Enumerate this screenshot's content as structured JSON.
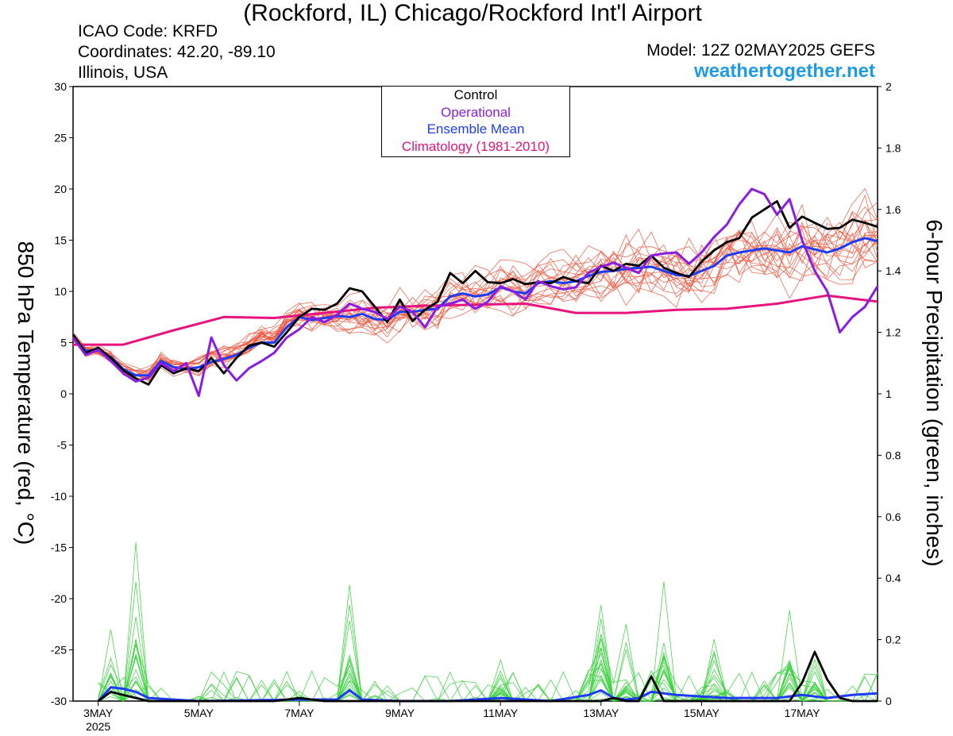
{
  "header": {
    "title": "(Rockford, IL) Chicago/Rockford Int'l Airport",
    "icao": "ICAO Code: KRFD",
    "coordinates": "Coordinates: 42.20, -89.10",
    "region": "Illinois, USA",
    "model": "Model: 12Z 02MAY2025 GEFS",
    "site": "weathertogether.net"
  },
  "legend": {
    "items": [
      {
        "label": "Control",
        "color": "#000000"
      },
      {
        "label": "Operational",
        "color": "#8a1de0"
      },
      {
        "label": "Ensemble Mean",
        "color": "#1f3cf5"
      },
      {
        "label": "Climatology (1981-2010)",
        "color": "#e8147d"
      }
    ]
  },
  "chart_data": {
    "type": "line",
    "ylabel_left": "850 hPa Temperature (red, °C)",
    "ylabel_right": "6-hour Precipitation (green, inches)",
    "ylim_left": [
      -30,
      30
    ],
    "ylim_right": [
      0,
      2
    ],
    "yticks_left": [
      -30,
      -25,
      -20,
      -15,
      -10,
      -5,
      0,
      5,
      10,
      15,
      20,
      25,
      30
    ],
    "yticks_right": [
      0,
      0.2,
      0.4,
      0.6,
      0.8,
      1,
      1.2,
      1.4,
      1.6,
      1.8,
      2
    ],
    "xlim_days": [
      2.5,
      18.5
    ],
    "xticks": [
      {
        "day": 3,
        "label": "3MAY",
        "sub": "2025"
      },
      {
        "day": 5,
        "label": "5MAY"
      },
      {
        "day": 7,
        "label": "7MAY"
      },
      {
        "day": 9,
        "label": "9MAY"
      },
      {
        "day": 11,
        "label": "11MAY"
      },
      {
        "day": 13,
        "label": "13MAY"
      },
      {
        "day": 15,
        "label": "15MAY"
      },
      {
        "day": 17,
        "label": "17MAY"
      }
    ],
    "colors": {
      "members_temp": "#f0553c",
      "members_precip": "#39d23c",
      "control": "#000000",
      "operational": "#8a1de0",
      "mean": "#1f3cf5",
      "climatology": "#e8147d"
    },
    "temperature": {
      "climatology": {
        "x": [
          2.5,
          3.5,
          4.5,
          5.5,
          6.5,
          7.5,
          8.5,
          9.5,
          10.5,
          11.5,
          12.5,
          13.5,
          14.5,
          15.5,
          16.5,
          17.0,
          17.5,
          18.5
        ],
        "y": [
          4.8,
          4.8,
          6.2,
          7.5,
          7.4,
          7.9,
          8.4,
          8.6,
          8.7,
          8.8,
          7.9,
          7.9,
          8.2,
          8.3,
          8.8,
          9.2,
          9.6,
          9.0
        ]
      },
      "control": {
        "x": [
          2.5,
          2.75,
          3.0,
          3.25,
          3.5,
          3.75,
          4.0,
          4.25,
          4.5,
          4.75,
          5.0,
          5.25,
          5.5,
          5.75,
          6.0,
          6.25,
          6.5,
          6.75,
          7.0,
          7.25,
          7.5,
          7.75,
          8.0,
          8.25,
          8.5,
          8.75,
          9.0,
          9.25,
          9.5,
          9.75,
          10.0,
          10.25,
          10.5,
          10.75,
          11.0,
          11.25,
          11.5,
          11.75,
          12.0,
          12.25,
          12.5,
          12.75,
          13.0,
          13.25,
          13.5,
          13.75,
          14.0,
          14.25,
          14.5,
          14.75,
          15.0,
          15.25,
          15.5,
          15.75,
          16.0,
          16.25,
          16.5,
          16.75,
          17.0,
          17.25,
          17.5,
          17.75,
          18.0,
          18.25,
          18.5
        ],
        "y": [
          5.8,
          4.0,
          4.5,
          3.5,
          2.3,
          1.5,
          0.9,
          2.8,
          2.0,
          2.5,
          2.2,
          3.5,
          2.0,
          3.5,
          4.7,
          5.0,
          4.6,
          6.0,
          7.5,
          8.3,
          8.2,
          8.8,
          10.3,
          10.0,
          8.5,
          7.0,
          9.2,
          7.1,
          8.2,
          9.0,
          11.8,
          10.8,
          12.0,
          10.9,
          10.8,
          11.2,
          10.7,
          10.9,
          10.8,
          11.4,
          11.0,
          10.8,
          12.5,
          12.0,
          12.7,
          12.5,
          13.5,
          12.3,
          11.8,
          11.4,
          12.9,
          14.0,
          14.8,
          15.2,
          17.2,
          18.0,
          18.8,
          16.2,
          17.3,
          16.7,
          16.1,
          16.2,
          17.0,
          16.7,
          16.3
        ]
      },
      "operational": {
        "x": [
          2.5,
          2.75,
          3.0,
          3.25,
          3.5,
          3.75,
          4.0,
          4.25,
          4.5,
          4.75,
          5.0,
          5.25,
          5.5,
          5.75,
          6.0,
          6.25,
          6.5,
          6.75,
          7.0,
          7.25,
          7.5,
          7.75,
          8.0,
          8.25,
          8.5,
          8.75,
          9.0,
          9.25,
          9.5,
          9.75,
          10.0,
          10.25,
          10.5,
          10.75,
          11.0,
          11.25,
          11.5,
          11.75,
          12.0,
          12.25,
          12.5,
          12.75,
          13.0,
          13.25,
          13.5,
          13.75,
          14.0,
          14.25,
          14.5,
          14.75,
          15.0,
          15.25,
          15.5,
          15.75,
          16.0,
          16.25,
          16.5,
          16.75,
          17.0,
          17.25,
          17.5,
          17.75,
          18.0,
          18.25,
          18.5
        ],
        "y": [
          5.5,
          3.8,
          4.3,
          3.2,
          2.0,
          1.2,
          1.6,
          3.0,
          2.2,
          3.0,
          -0.2,
          5.5,
          2.8,
          1.3,
          2.5,
          3.2,
          4.0,
          5.5,
          6.3,
          7.5,
          7.0,
          7.7,
          8.8,
          8.3,
          8.0,
          7.3,
          8.5,
          8.0,
          6.5,
          8.5,
          8.8,
          9.2,
          8.3,
          9.0,
          10.5,
          10.0,
          9.2,
          11.0,
          10.5,
          10.2,
          10.4,
          11.8,
          12.4,
          12.8,
          12.3,
          11.8,
          13.5,
          13.7,
          13.8,
          12.7,
          13.8,
          15.3,
          16.5,
          18.5,
          20.0,
          19.5,
          17.5,
          19.0,
          15.0,
          12.0,
          10.0,
          6.0,
          7.5,
          8.5,
          10.5
        ]
      },
      "mean": {
        "x": [
          2.5,
          2.75,
          3.0,
          3.25,
          3.5,
          3.75,
          4.0,
          4.25,
          4.5,
          4.75,
          5.0,
          5.25,
          5.5,
          5.75,
          6.0,
          6.25,
          6.5,
          6.75,
          7.0,
          7.25,
          7.5,
          7.75,
          8.0,
          8.25,
          8.5,
          8.75,
          9.0,
          9.25,
          9.5,
          9.75,
          10.0,
          10.25,
          10.5,
          10.75,
          11.0,
          11.25,
          11.5,
          11.75,
          12.0,
          12.25,
          12.5,
          12.75,
          13.0,
          13.25,
          13.5,
          13.75,
          14.0,
          14.25,
          14.5,
          14.75,
          15.0,
          15.25,
          15.5,
          15.75,
          16.0,
          16.25,
          16.5,
          16.75,
          17.0,
          17.25,
          17.5,
          17.75,
          18.0,
          18.25,
          18.5
        ],
        "y": [
          5.5,
          4.2,
          4.2,
          3.6,
          2.4,
          1.8,
          1.8,
          3.2,
          2.6,
          2.4,
          2.6,
          3.1,
          3.4,
          3.8,
          4.5,
          5.0,
          5.0,
          6.5,
          7.5,
          7.2,
          7.4,
          7.6,
          7.5,
          7.8,
          7.3,
          7.2,
          8.0,
          8.0,
          8.2,
          8.3,
          9.5,
          9.8,
          9.5,
          9.7,
          10.4,
          10.0,
          9.8,
          10.8,
          11.0,
          10.8,
          11.0,
          11.5,
          11.9,
          12.0,
          12.2,
          12.3,
          12.4,
          12.0,
          11.6,
          11.5,
          12.0,
          12.5,
          13.5,
          13.8,
          14.0,
          14.2,
          14.0,
          13.8,
          14.4,
          14.1,
          13.8,
          14.2,
          14.8,
          15.2,
          14.9
        ]
      }
    },
    "precipitation": {
      "control": {
        "x": [
          3.0,
          3.25,
          3.5,
          3.75,
          4.0,
          4.25,
          4.5,
          6.5,
          7.0,
          7.5,
          13.0,
          13.25,
          13.5,
          13.75,
          14.0,
          14.25,
          14.5,
          16.75,
          17.0,
          17.25,
          17.5,
          17.75,
          18.0,
          18.5
        ],
        "y": [
          0.0,
          0.03,
          0.02,
          0.01,
          0.0,
          0.0,
          0.0,
          0.0,
          0.01,
          0.0,
          0.0,
          0.01,
          0.0,
          0.0,
          0.08,
          0.0,
          0.0,
          0.0,
          0.06,
          0.16,
          0.07,
          0.01,
          0.0,
          0.0
        ]
      },
      "operational": {
        "x": [
          3.0,
          3.5,
          4.0,
          4.5,
          5.0,
          7.0,
          8.0,
          9.0,
          13.0,
          13.5,
          14.0,
          15.0,
          17.0,
          17.5,
          18.0,
          18.5
        ],
        "y": [
          0.0,
          0.03,
          0.01,
          0.0,
          0.0,
          0.0,
          0.02,
          0.0,
          0.0,
          0.01,
          0.02,
          0.0,
          0.0,
          0.01,
          0.02,
          0.02
        ]
      },
      "mean": {
        "x": [
          3.0,
          3.25,
          3.5,
          3.75,
          4.0,
          4.5,
          5.0,
          7.0,
          7.75,
          8.0,
          8.25,
          9.0,
          10.0,
          11.0,
          12.0,
          12.75,
          13.0,
          13.25,
          13.5,
          13.75,
          14.0,
          14.5,
          15.0,
          15.5,
          16.0,
          16.5,
          17.0,
          17.5,
          18.0,
          18.5
        ],
        "y": [
          0.0,
          0.045,
          0.04,
          0.03,
          0.01,
          0.005,
          0.0,
          0.005,
          0.005,
          0.035,
          0.005,
          0.0,
          0.0,
          0.01,
          0.0,
          0.02,
          0.035,
          0.01,
          0.005,
          0.01,
          0.03,
          0.02,
          0.015,
          0.01,
          0.01,
          0.01,
          0.02,
          0.01,
          0.02,
          0.025
        ]
      }
    }
  }
}
